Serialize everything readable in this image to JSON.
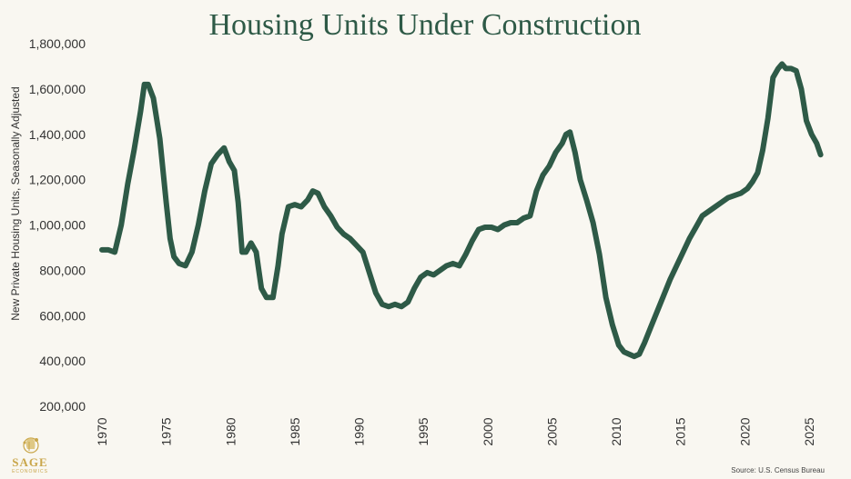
{
  "chart_data": {
    "type": "line",
    "title": "Housing Units Under Construction",
    "ylabel": "New Private Housing Units, Seasonally Adjusted",
    "xlabel": "",
    "ylim": [
      200000,
      1800000
    ],
    "xlim": [
      1970,
      2026
    ],
    "y_ticks": [
      200000,
      400000,
      600000,
      800000,
      1000000,
      1200000,
      1400000,
      1600000,
      1800000
    ],
    "y_tick_labels": [
      "200,000",
      "400,000",
      "600,000",
      "800,000",
      "1,000,000",
      "1,200,000",
      "1,400,000",
      "1,600,000",
      "1,800,000"
    ],
    "x_ticks": [
      1970,
      1975,
      1980,
      1985,
      1990,
      1995,
      2000,
      2005,
      2010,
      2015,
      2020,
      2025
    ],
    "x_tick_labels": [
      "1970",
      "1975",
      "1980",
      "1985",
      "1990",
      "1995",
      "2000",
      "2005",
      "2010",
      "2015",
      "2020",
      "2025"
    ],
    "grid": false,
    "line_color": "#2e5a47",
    "series": [
      {
        "name": "Housing Units Under Construction",
        "x": [
          1970.0,
          1970.5,
          1971.0,
          1971.5,
          1972.0,
          1972.5,
          1973.0,
          1973.3,
          1973.6,
          1974.0,
          1974.5,
          1975.0,
          1975.3,
          1975.6,
          1976.0,
          1976.5,
          1977.0,
          1977.5,
          1978.0,
          1978.5,
          1979.0,
          1979.5,
          1979.9,
          1980.3,
          1980.6,
          1980.9,
          1981.2,
          1981.6,
          1982.0,
          1982.4,
          1982.8,
          1983.3,
          1983.7,
          1984.0,
          1984.5,
          1985.0,
          1985.5,
          1986.0,
          1986.4,
          1986.8,
          1987.3,
          1987.8,
          1988.3,
          1988.8,
          1989.3,
          1989.8,
          1990.3,
          1990.8,
          1991.3,
          1991.8,
          1992.3,
          1992.8,
          1993.3,
          1993.8,
          1994.3,
          1994.8,
          1995.3,
          1995.8,
          1996.3,
          1996.8,
          1997.3,
          1997.8,
          1998.3,
          1998.8,
          1999.3,
          1999.8,
          2000.3,
          2000.8,
          2001.3,
          2001.8,
          2002.3,
          2002.8,
          2003.3,
          2003.8,
          2004.3,
          2004.8,
          2005.3,
          2005.8,
          2006.1,
          2006.4,
          2006.8,
          2007.2,
          2007.7,
          2008.2,
          2008.7,
          2009.2,
          2009.7,
          2010.2,
          2010.6,
          2011.0,
          2011.4,
          2011.8,
          2012.2,
          2012.7,
          2013.2,
          2013.7,
          2014.2,
          2014.7,
          2015.2,
          2015.7,
          2016.2,
          2016.7,
          2017.2,
          2017.7,
          2018.2,
          2018.7,
          2019.2,
          2019.7,
          2020.2,
          2020.6,
          2021.0,
          2021.4,
          2021.8,
          2022.2,
          2022.6,
          2022.9,
          2023.2,
          2023.6,
          2024.0,
          2024.4,
          2024.8,
          2025.2,
          2025.6,
          2025.9
        ],
        "values": [
          890000,
          890000,
          880000,
          1000000,
          1180000,
          1330000,
          1500000,
          1620000,
          1620000,
          1560000,
          1380000,
          1100000,
          940000,
          860000,
          830000,
          820000,
          880000,
          1000000,
          1150000,
          1270000,
          1310000,
          1340000,
          1280000,
          1240000,
          1100000,
          880000,
          880000,
          920000,
          880000,
          720000,
          680000,
          680000,
          820000,
          960000,
          1080000,
          1090000,
          1080000,
          1110000,
          1150000,
          1140000,
          1080000,
          1040000,
          990000,
          960000,
          940000,
          910000,
          880000,
          790000,
          700000,
          650000,
          640000,
          650000,
          640000,
          660000,
          720000,
          770000,
          790000,
          780000,
          800000,
          820000,
          830000,
          820000,
          870000,
          930000,
          980000,
          990000,
          990000,
          980000,
          1000000,
          1010000,
          1010000,
          1030000,
          1040000,
          1150000,
          1220000,
          1260000,
          1320000,
          1360000,
          1400000,
          1410000,
          1320000,
          1200000,
          1110000,
          1010000,
          870000,
          680000,
          560000,
          470000,
          440000,
          430000,
          420000,
          430000,
          480000,
          550000,
          620000,
          690000,
          760000,
          820000,
          880000,
          940000,
          990000,
          1040000,
          1060000,
          1080000,
          1100000,
          1120000,
          1130000,
          1140000,
          1160000,
          1190000,
          1230000,
          1330000,
          1470000,
          1650000,
          1690000,
          1710000,
          1690000,
          1690000,
          1680000,
          1600000,
          1460000,
          1400000,
          1360000,
          1310000
        ]
      }
    ]
  },
  "source_text": "Source: U.S. Census Bureau",
  "logo": {
    "name": "SAGE",
    "tagline": "ECONOMICS"
  }
}
